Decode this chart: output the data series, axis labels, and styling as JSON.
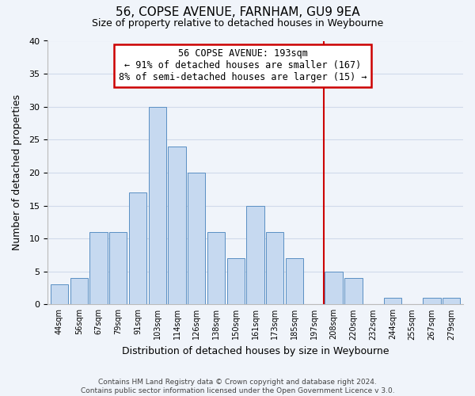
{
  "title": "56, COPSE AVENUE, FARNHAM, GU9 9EA",
  "subtitle": "Size of property relative to detached houses in Weybourne",
  "xlabel": "Distribution of detached houses by size in Weybourne",
  "ylabel": "Number of detached properties",
  "bin_labels": [
    "44sqm",
    "56sqm",
    "67sqm",
    "79sqm",
    "91sqm",
    "103sqm",
    "114sqm",
    "126sqm",
    "138sqm",
    "150sqm",
    "161sqm",
    "173sqm",
    "185sqm",
    "197sqm",
    "208sqm",
    "220sqm",
    "232sqm",
    "244sqm",
    "255sqm",
    "267sqm",
    "279sqm"
  ],
  "bar_heights": [
    3,
    4,
    11,
    11,
    17,
    30,
    24,
    20,
    11,
    7,
    15,
    11,
    7,
    0,
    5,
    4,
    0,
    1,
    0,
    1,
    1
  ],
  "bar_color": "#c6d9f0",
  "bar_edge_color": "#5a8fc3",
  "ylim": [
    0,
    40
  ],
  "yticks": [
    0,
    5,
    10,
    15,
    20,
    25,
    30,
    35,
    40
  ],
  "vline_x_index": 13.5,
  "vline_color": "#cc0000",
  "annotation_title": "56 COPSE AVENUE: 193sqm",
  "annotation_line1": "← 91% of detached houses are smaller (167)",
  "annotation_line2": "8% of semi-detached houses are larger (15) →",
  "footer1": "Contains HM Land Registry data © Crown copyright and database right 2024.",
  "footer2": "Contains public sector information licensed under the Open Government Licence v 3.0.",
  "background_color": "#f0f4fa",
  "grid_color": "#d0daea"
}
